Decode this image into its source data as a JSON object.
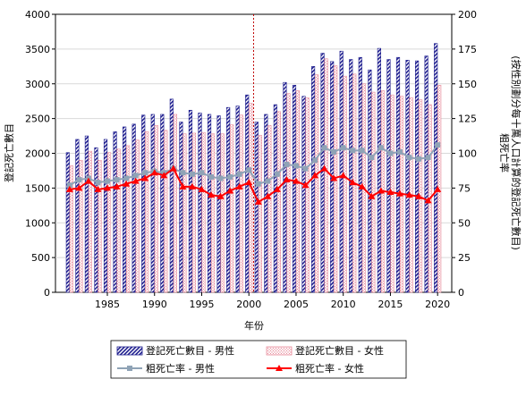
{
  "chart_data": {
    "type": "bar",
    "xlabel": "年份",
    "ylabel_left": "登記死亡數目",
    "ylabel_right": [
      "粗死亡率",
      "(按性別劃分每十萬人口計算的登記死亡數目)"
    ],
    "ylim_left": [
      0,
      4000
    ],
    "ylim_right": [
      0,
      200
    ],
    "left_ticks": [
      "0",
      "500",
      "1000",
      "1500",
      "2000",
      "2500",
      "3000",
      "3500",
      "4000"
    ],
    "right_ticks": [
      "0",
      "25",
      "50",
      "75",
      "100",
      "125",
      "150",
      "175",
      "200"
    ],
    "x_ticks": [
      "1985",
      "1990",
      "1995",
      "2000",
      "2005",
      "2010",
      "2015",
      "2020"
    ],
    "years": [
      1981,
      1982,
      1983,
      1984,
      1985,
      1986,
      1987,
      1988,
      1989,
      1990,
      1991,
      1992,
      1993,
      1994,
      1995,
      1996,
      1997,
      1998,
      1999,
      2000,
      2001,
      2002,
      2003,
      2004,
      2005,
      2006,
      2007,
      2008,
      2009,
      2010,
      2011,
      2012,
      2013,
      2014,
      2015,
      2016,
      2017,
      2018,
      2019,
      2020
    ],
    "reference_year": 2001,
    "series": [
      {
        "name": "登記死亡數目 - 男性",
        "kind": "bar",
        "axis": "left",
        "color": "#1f1f8f",
        "values": [
          2010,
          2200,
          2250,
          2080,
          2200,
          2310,
          2380,
          2420,
          2550,
          2560,
          2560,
          2780,
          2450,
          2620,
          2580,
          2560,
          2540,
          2660,
          2680,
          2840,
          2450,
          2560,
          2700,
          3020,
          2980,
          2820,
          3250,
          3440,
          3320,
          3470,
          3350,
          3380,
          3200,
          3510,
          3350,
          3380,
          3340,
          3330,
          3400,
          3580
        ]
      },
      {
        "name": "登記死亡數目 - 女性",
        "kind": "bar",
        "axis": "left",
        "color": "#f2b8c2",
        "values": [
          1820,
          1900,
          2030,
          1900,
          2010,
          2060,
          2110,
          2190,
          2310,
          2400,
          2330,
          2560,
          2280,
          2290,
          2300,
          2280,
          2280,
          2410,
          2550,
          2720,
          2260,
          2400,
          2600,
          2860,
          2900,
          2800,
          3130,
          3360,
          3260,
          3110,
          3140,
          3000,
          2880,
          2900,
          2840,
          2820,
          2800,
          2770,
          2700,
          2980
        ]
      },
      {
        "name": "粗死亡率 - 男性",
        "kind": "line",
        "axis": "right",
        "color": "#8fa3b6",
        "values": [
          77,
          81,
          82,
          79,
          80,
          81,
          82,
          84,
          86,
          87,
          86,
          89,
          86,
          85,
          86,
          83,
          82,
          83,
          85,
          88,
          78,
          80,
          85,
          92,
          91,
          89,
          95,
          104,
          101,
          104,
          102,
          102,
          97,
          104,
          100,
          101,
          97,
          96,
          97,
          106
        ]
      },
      {
        "name": "粗死亡率 - 女性",
        "kind": "line",
        "axis": "right",
        "color": "#ff0000",
        "values": [
          74,
          75,
          80,
          74,
          75,
          76,
          78,
          80,
          82,
          86,
          84,
          89,
          76,
          76,
          74,
          70,
          69,
          73,
          76,
          79,
          65,
          69,
          74,
          81,
          80,
          77,
          84,
          89,
          82,
          84,
          79,
          76,
          69,
          73,
          72,
          71,
          70,
          69,
          66,
          74
        ]
      }
    ]
  }
}
